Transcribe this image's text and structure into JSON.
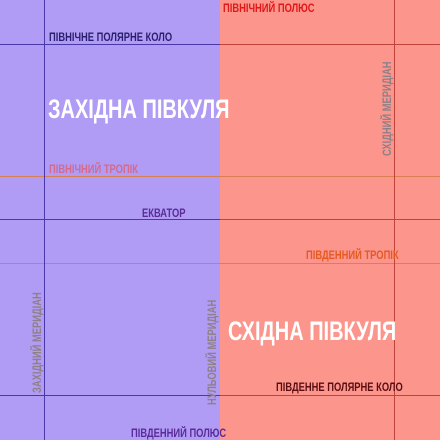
{
  "colors": {
    "west_fill": "#b09cf4",
    "east_fill": "#fc958c",
    "west_line": "#4a38a8",
    "east_line": "#c0443c",
    "tropic_line": "#d88052",
    "label_navy": "#2a1f6e",
    "label_red": "#e01818",
    "label_orange": "#e45a22",
    "label_purple": "#5a2b9a",
    "label_pink": "#d36a8f",
    "label_gray": "#8f7f86",
    "label_darkred": "#5a0e12"
  },
  "labels": {
    "north_pole": "ПІВНІЧНИЙ ПОЛЮС",
    "arctic_circle": "ПІВНІЧНЕ ПОЛЯРНЕ КОЛО",
    "western_hemisphere": "ЗАХІДНА ПІВКУЛЯ",
    "tropic_cancer": "ПІВНІЧНИЙ ТРОПІК",
    "equator": "ЕКВАТОР",
    "tropic_capricorn": "ПІВДЕННИЙ ТРОПІК",
    "eastern_hemisphere": "СХІДНА ПІВКУЛЯ",
    "antarctic_circle": "ПІВДЕННЕ ПОЛЯРНЕ КОЛО",
    "south_pole": "ПІВДЕННИЙ ПОЛЮС",
    "western_meridian": "ЗАХІДНИЙ МЕРИДІАН",
    "eastern_meridian": "СХІДНИЙ МЕРИДІАН",
    "prime_meridian": "НУЛЬОВИЙ МЕРИДІАН"
  }
}
